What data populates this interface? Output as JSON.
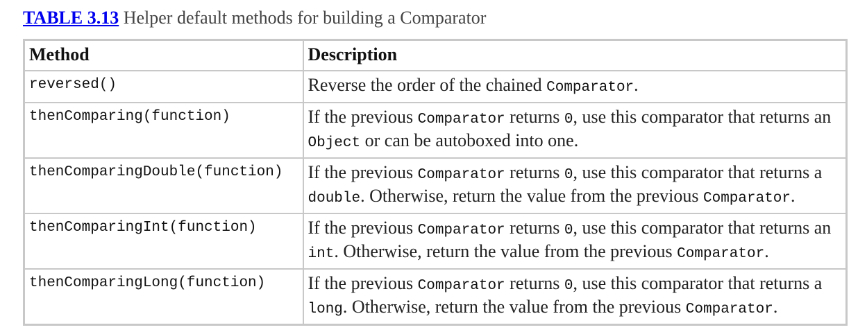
{
  "caption": {
    "label": "TABLE 3.13",
    "text": " Helper default methods for building a Comparator"
  },
  "table": {
    "headers": [
      "Method",
      "Description"
    ],
    "rows": [
      {
        "method": "reversed()",
        "description": [
          {
            "t": "Reverse the order of the chained "
          },
          {
            "c": "Comparator"
          },
          {
            "t": "."
          }
        ]
      },
      {
        "method": "thenComparing(function)",
        "description": [
          {
            "t": "If the previous "
          },
          {
            "c": "Comparator"
          },
          {
            "t": " returns "
          },
          {
            "c": "0"
          },
          {
            "t": ", use this comparator that returns an "
          },
          {
            "c": "Object"
          },
          {
            "t": " or can be autoboxed into one."
          }
        ]
      },
      {
        "method": "thenComparingDouble(function)",
        "description": [
          {
            "t": "If the previous "
          },
          {
            "c": "Comparator"
          },
          {
            "t": " returns "
          },
          {
            "c": "0"
          },
          {
            "t": ", use this comparator that returns a "
          },
          {
            "c": "double"
          },
          {
            "t": ". Otherwise, return the value from the previous "
          },
          {
            "c": "Comparator"
          },
          {
            "t": "."
          }
        ]
      },
      {
        "method": "thenComparingInt(function)",
        "description": [
          {
            "t": "If the previous "
          },
          {
            "c": "Comparator"
          },
          {
            "t": " returns "
          },
          {
            "c": "0"
          },
          {
            "t": ", use this comparator that returns an "
          },
          {
            "c": "int"
          },
          {
            "t": ". Otherwise, return the value from the previous "
          },
          {
            "c": "Comparator"
          },
          {
            "t": "."
          }
        ]
      },
      {
        "method": "thenComparingLong(function)",
        "description": [
          {
            "t": "If the previous "
          },
          {
            "c": "Comparator"
          },
          {
            "t": " returns "
          },
          {
            "c": "0"
          },
          {
            "t": ", use this comparator that returns a "
          },
          {
            "c": "long"
          },
          {
            "t": ". Otherwise, return the value from the previous "
          },
          {
            "c": "Comparator"
          },
          {
            "t": "."
          }
        ]
      }
    ]
  }
}
